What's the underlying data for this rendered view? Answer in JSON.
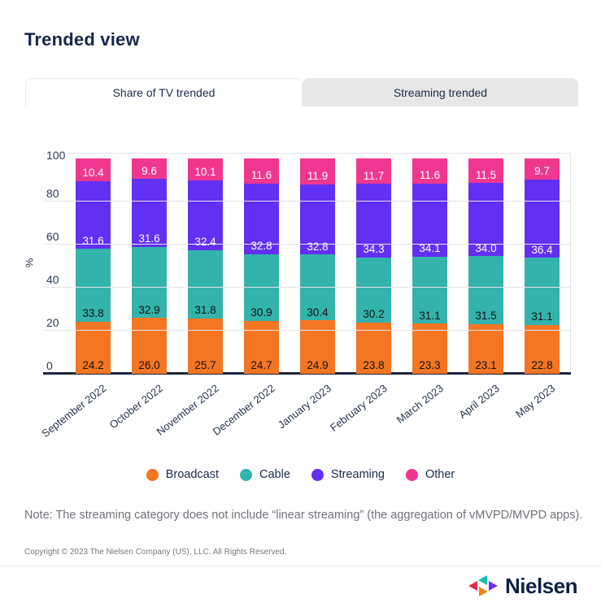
{
  "page": {
    "title": "Trended view"
  },
  "tabs": [
    {
      "label": "Share of TV trended",
      "active": true
    },
    {
      "label": "Streaming trended",
      "active": false
    }
  ],
  "chart_data": {
    "type": "bar",
    "stacked": true,
    "title": "Share of TV trended",
    "ylabel": "%",
    "ylim": [
      0,
      100
    ],
    "yticks": [
      0,
      20,
      40,
      60,
      80,
      100
    ],
    "grid": true,
    "legend_position": "bottom",
    "categories": [
      "September 2022",
      "October 2022",
      "November 2022",
      "December 2022",
      "January 2023",
      "February 2023",
      "March 2023",
      "April 2023",
      "May 2023"
    ],
    "series": [
      {
        "name": "Broadcast",
        "color": "#F47522",
        "label_color": "#141414",
        "values": [
          24.2,
          26.0,
          25.7,
          24.7,
          24.9,
          23.8,
          23.3,
          23.1,
          22.8
        ],
        "labels": [
          "24.2",
          "26.0",
          "25.7",
          "24.7",
          "24.9",
          "23.8",
          "23.3",
          "23.1",
          "22.8"
        ]
      },
      {
        "name": "Cable",
        "color": "#33B3AC",
        "label_color": "#141414",
        "values": [
          33.8,
          32.9,
          31.8,
          30.9,
          30.4,
          30.2,
          31.1,
          31.5,
          31.1
        ],
        "labels": [
          "33.8",
          "32.9",
          "31.8",
          "30.9",
          "30.4",
          "30.2",
          "31.1",
          "31.5",
          "31.1"
        ]
      },
      {
        "name": "Streaming",
        "color": "#6230F2",
        "label_color": "#FFFFFF",
        "values": [
          31.6,
          31.6,
          32.4,
          32.8,
          32.8,
          34.3,
          34.1,
          34.0,
          36.4
        ],
        "labels": [
          "31.6",
          "31.6",
          "32.4",
          "32.8",
          "32.8",
          "34.3",
          "34.1",
          "34.0",
          "36.4"
        ]
      },
      {
        "name": "Other",
        "color": "#F0378F",
        "label_color": "#FFFFFF",
        "values": [
          10.4,
          9.6,
          10.1,
          11.6,
          11.9,
          11.7,
          11.6,
          11.5,
          9.7
        ],
        "labels": [
          "10.4",
          "9.6",
          "10.1",
          "11.6",
          "11.9",
          "11.7",
          "11.6",
          "11.5",
          "9.7"
        ]
      }
    ]
  },
  "note": "Note: The streaming category does not include “linear streaming” (the aggregation of vMVPD/MVPD apps).",
  "copyright": "Copyright © 2023 The Nielsen Company (US), LLC. All Rights Reserved.",
  "logo": {
    "text": "Nielsen"
  }
}
